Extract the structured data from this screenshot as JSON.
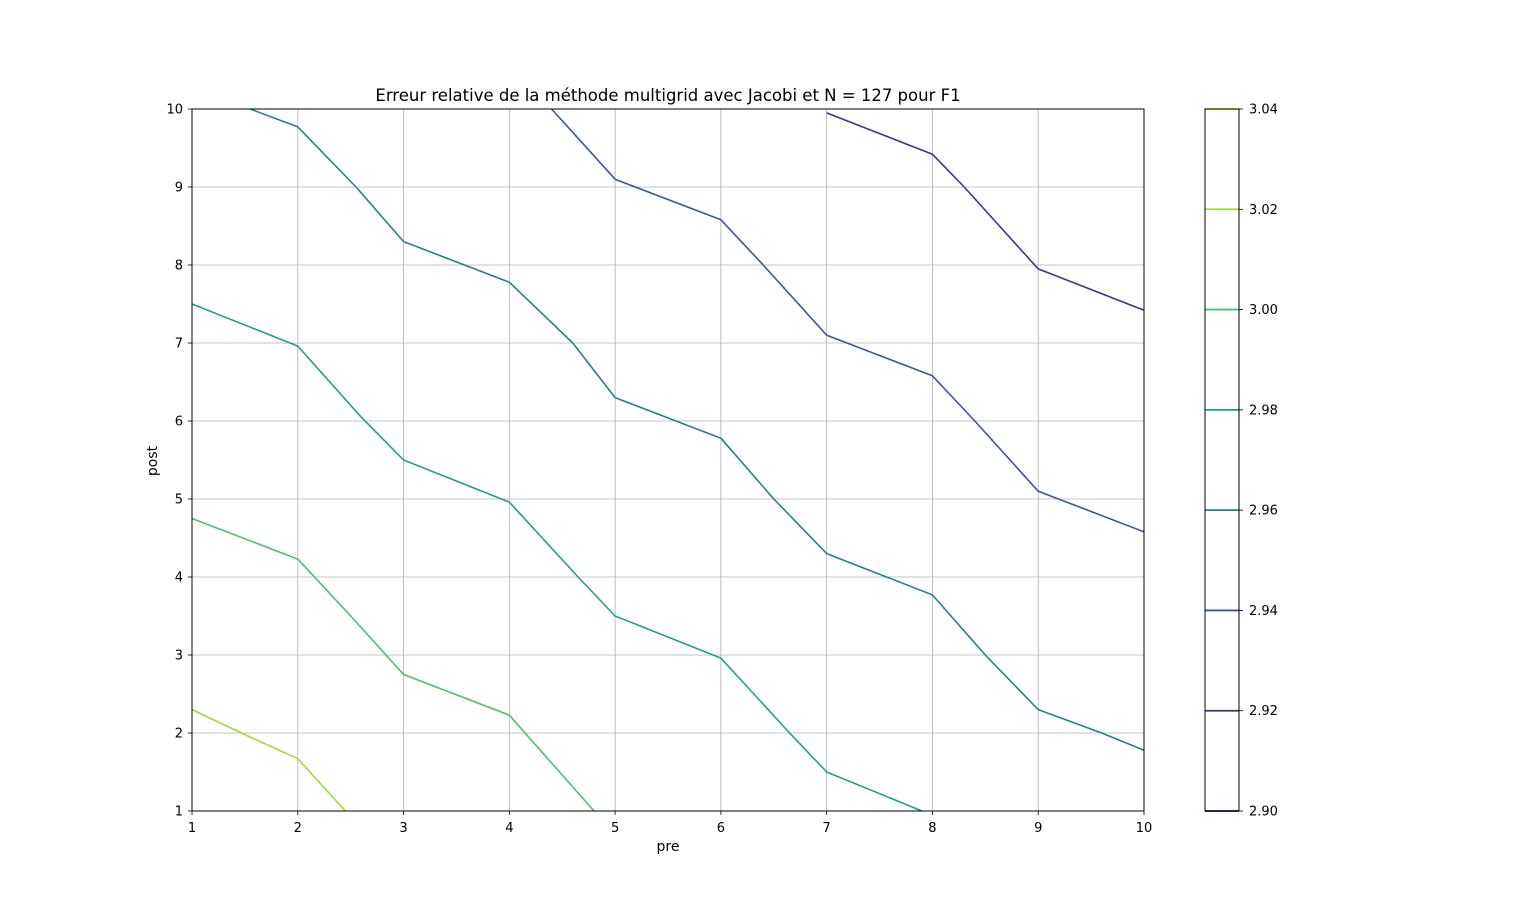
{
  "chart_data": {
    "type": "contour",
    "title": "Erreur relative de la méthode multigrid avec Jacobi et N = 127 pour F1",
    "xlabel": "pre",
    "ylabel": "post",
    "xlim": [
      1,
      10
    ],
    "ylim": [
      1,
      10
    ],
    "x_ticks": [
      "1",
      "2",
      "3",
      "4",
      "5",
      "6",
      "7",
      "8",
      "9",
      "10"
    ],
    "y_ticks": [
      "1",
      "2",
      "3",
      "4",
      "5",
      "6",
      "7",
      "8",
      "9",
      "10"
    ],
    "grid": true,
    "colorbar": {
      "ticks": [
        "2.90",
        "2.92",
        "2.94",
        "2.96",
        "2.98",
        "3.00",
        "3.02",
        "3.04"
      ],
      "range": [
        2.9,
        3.04
      ]
    },
    "contours": [
      {
        "level": 3.02,
        "color": "#a0da39",
        "points": [
          [
            1,
            2.3
          ],
          [
            1.5,
            1.98
          ],
          [
            2,
            1.67
          ],
          [
            2.45,
            1.0
          ]
        ]
      },
      {
        "level": 3.0,
        "color": "#4ac16d",
        "points": [
          [
            1,
            4.75
          ],
          [
            2,
            4.23
          ],
          [
            2.5,
            3.5
          ],
          [
            3,
            2.75
          ],
          [
            4,
            2.23
          ],
          [
            4.8,
            1.0
          ]
        ]
      },
      {
        "level": 2.98,
        "color": "#1fa187",
        "points": [
          [
            1,
            7.5
          ],
          [
            2,
            6.96
          ],
          [
            2.6,
            6.05
          ],
          [
            3,
            5.5
          ],
          [
            4,
            4.96
          ],
          [
            4.65,
            4.0
          ],
          [
            5,
            3.5
          ],
          [
            6,
            2.96
          ],
          [
            6.65,
            2.0
          ],
          [
            7,
            1.5
          ],
          [
            7.9,
            1.0
          ]
        ]
      },
      {
        "level": 2.96,
        "color": "#277f8e",
        "points": [
          [
            1.55,
            10
          ],
          [
            2,
            9.77
          ],
          [
            2.55,
            9.0
          ],
          [
            3,
            8.3
          ],
          [
            4,
            7.78
          ],
          [
            4.6,
            7.0
          ],
          [
            5,
            6.3
          ],
          [
            6,
            5.78
          ],
          [
            6.5,
            5.0
          ],
          [
            7,
            4.3
          ],
          [
            8,
            3.77
          ],
          [
            8.5,
            3.0
          ],
          [
            9,
            2.3
          ],
          [
            9.6,
            2.0
          ],
          [
            10,
            1.78
          ]
        ]
      },
      {
        "level": 2.94,
        "color": "#365c8d",
        "points": [
          [
            4.4,
            10
          ],
          [
            5,
            9.1
          ],
          [
            6,
            8.58
          ],
          [
            6.4,
            8.0
          ],
          [
            7,
            7.1
          ],
          [
            8,
            6.58
          ],
          [
            8.4,
            6.0
          ],
          [
            9,
            5.1
          ],
          [
            10,
            4.58
          ]
        ]
      },
      {
        "level": 2.92,
        "color": "#46327e",
        "points": [
          [
            7.0,
            9.95
          ],
          [
            8,
            9.42
          ],
          [
            8.3,
            9.0
          ],
          [
            9,
            7.95
          ],
          [
            10,
            7.42
          ]
        ]
      }
    ]
  }
}
